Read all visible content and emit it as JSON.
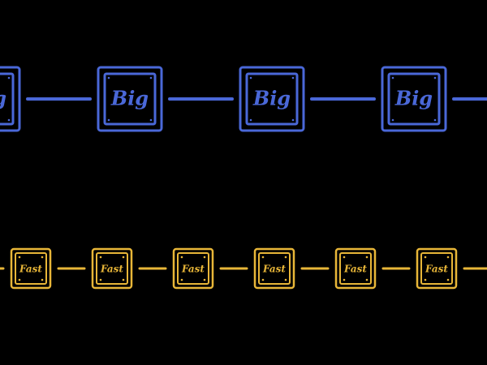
{
  "diagram": {
    "colors": {
      "background": "#000000",
      "big": "#4a68d8",
      "fast": "#e8b638"
    },
    "rows": [
      {
        "name": "big-row",
        "label": "Big",
        "color_key": "big",
        "box_count": 4
      },
      {
        "name": "fast-row",
        "label": "Fast",
        "color_key": "fast",
        "box_count": 6
      }
    ]
  }
}
